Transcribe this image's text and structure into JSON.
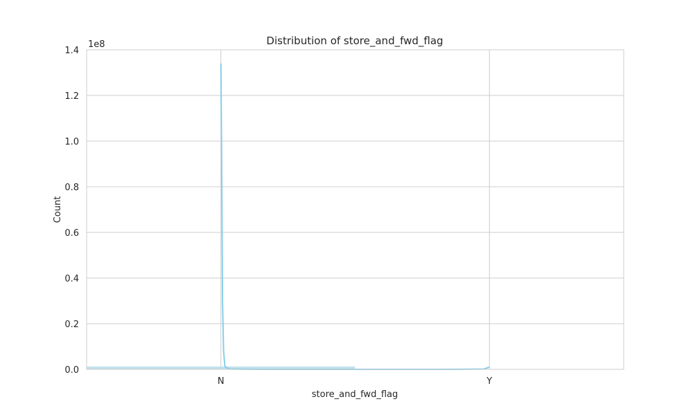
{
  "chart_data": {
    "type": "bar",
    "title": "Distribution of store_and_fwd_flag",
    "xlabel": "store_and_fwd_flag",
    "ylabel": "Count",
    "y_offset_label": "1e8",
    "categories": [
      "N",
      "Y"
    ],
    "values": [
      1350000,
      2000
    ],
    "xlim": [
      -0.5,
      1.5
    ],
    "ylim": [
      0,
      140000000
    ],
    "yticks": [
      0,
      20000000,
      40000000,
      60000000,
      80000000,
      100000000,
      120000000,
      140000000
    ],
    "ytick_labels": [
      "0.0",
      "0.2",
      "0.4",
      "0.6",
      "0.8",
      "1.0",
      "1.2",
      "1.4"
    ],
    "kde": {
      "x": [
        0.0,
        0.003,
        0.006,
        0.01,
        0.015,
        0.03,
        0.1,
        0.3,
        0.6,
        0.9,
        0.98,
        1.0
      ],
      "y": [
        134000000,
        90000000,
        30000000,
        8000000,
        1200000,
        150000,
        20000,
        0,
        0,
        20000,
        150000,
        1000000
      ]
    },
    "grid": true,
    "colors": {
      "bar": "#add8e6",
      "kde": "#87ceeb",
      "grid": "#cccccc",
      "text": "#262626"
    }
  }
}
